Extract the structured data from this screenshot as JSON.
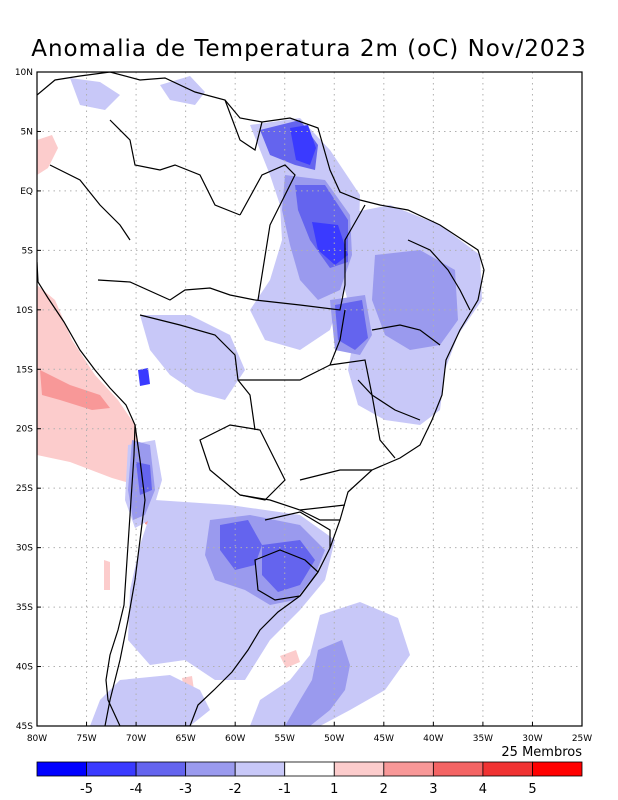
{
  "title": "Anomalia de Temperatura 2m (oC) Nov/2023",
  "ensemble_label": "25 Membros",
  "axes": {
    "lon_labels": [
      "80W",
      "75W",
      "70W",
      "65W",
      "60W",
      "55W",
      "50W",
      "45W",
      "40W",
      "35W",
      "30W",
      "25W"
    ],
    "lat_labels": [
      "10N",
      "5N",
      "EQ",
      "5S",
      "10S",
      "15S",
      "20S",
      "25S",
      "30S",
      "35S",
      "40S",
      "45S"
    ]
  },
  "colorbar": {
    "colors": [
      "#0000ff",
      "#3a3aff",
      "#6464ee",
      "#9a9aee",
      "#c8c8f8",
      "#ffffff",
      "#fccccc",
      "#f89898",
      "#f46464",
      "#f03232",
      "#ff0000"
    ],
    "tick_labels": [
      "-5",
      "-4",
      "-3",
      "-2",
      "-1",
      "1",
      "2",
      "3",
      "4",
      "5"
    ]
  },
  "colors": {
    "cold_light": "#c8c8f8",
    "cold_mid": "#9a9aee",
    "cold_strong": "#6464ee",
    "cold_deep": "#3a3aff",
    "warm_light": "#fccccc",
    "warm_mid": "#f89898",
    "warm_strong": "#f46464",
    "grid": "#b0b0b0"
  }
}
